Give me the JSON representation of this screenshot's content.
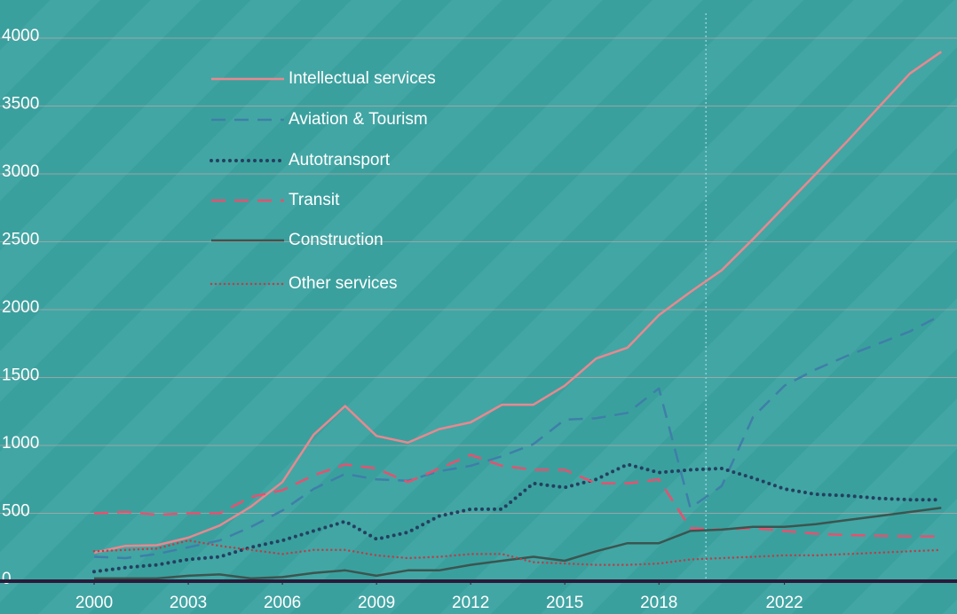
{
  "chart_data": {
    "type": "line",
    "x": [
      2000,
      2001,
      2002,
      2003,
      2004,
      2005,
      2006,
      2007,
      2008,
      2009,
      2010,
      2011,
      2012,
      2013,
      2014,
      2015,
      2016,
      2017,
      2018,
      2019,
      2020,
      2021,
      2022,
      2023,
      2024,
      2025,
      2026,
      2027
    ],
    "series": [
      {
        "name": "Intellectual services",
        "color": "#e8888f",
        "dash": "solid",
        "values": [
          210,
          260,
          265,
          320,
          410,
          550,
          730,
          1080,
          1290,
          1070,
          1020,
          1120,
          1170,
          1300,
          1300,
          1440,
          1640,
          1720,
          1960,
          2130,
          2290,
          2520,
          2760,
          3000,
          3240,
          3490,
          3740,
          3900
        ]
      },
      {
        "name": "Aviation & Tourism",
        "color": "#3e7fa8",
        "dash": "dashed",
        "values": [
          180,
          170,
          200,
          250,
          300,
          400,
          520,
          680,
          790,
          750,
          740,
          810,
          850,
          920,
          1010,
          1190,
          1200,
          1240,
          1420,
          540,
          700,
          1210,
          1440,
          1560,
          1660,
          1750,
          1840,
          1960
        ]
      },
      {
        "name": "Autotransport",
        "color": "#234060",
        "dash": "dotted",
        "values": [
          70,
          100,
          120,
          160,
          180,
          250,
          300,
          370,
          440,
          310,
          360,
          480,
          530,
          530,
          720,
          690,
          750,
          860,
          800,
          820,
          830,
          760,
          680,
          640,
          630,
          610,
          600,
          600
        ]
      },
      {
        "name": "Transit",
        "color": "#e8506e",
        "dash": "dashed",
        "values": [
          500,
          510,
          490,
          500,
          500,
          620,
          670,
          780,
          860,
          830,
          730,
          830,
          930,
          850,
          820,
          820,
          720,
          720,
          750,
          390,
          380,
          390,
          370,
          350,
          340,
          335,
          330,
          330
        ]
      },
      {
        "name": "Construction",
        "color": "#3a5550",
        "dash": "solid",
        "values": [
          20,
          20,
          20,
          40,
          50,
          20,
          30,
          60,
          80,
          40,
          80,
          80,
          120,
          150,
          180,
          150,
          220,
          280,
          280,
          370,
          380,
          400,
          400,
          420,
          450,
          480,
          510,
          540
        ]
      },
      {
        "name": "Other services",
        "color": "#b8404a",
        "dash": "dotted-thin",
        "values": [
          220,
          230,
          240,
          300,
          260,
          230,
          200,
          230,
          230,
          190,
          170,
          180,
          200,
          200,
          140,
          130,
          120,
          120,
          130,
          160,
          170,
          180,
          190,
          190,
          200,
          210,
          220,
          230
        ]
      }
    ],
    "xlim": [
      1997,
      2027.5
    ],
    "xticks": [
      2000,
      2003,
      2006,
      2009,
      2012,
      2015,
      2018,
      2022
    ],
    "ylim": [
      0,
      4000
    ],
    "yticks": [
      0,
      500,
      1000,
      1500,
      2000,
      2500,
      3000,
      3500,
      4000
    ],
    "grid": true,
    "vline": 2019.5,
    "legend": "upper left"
  }
}
